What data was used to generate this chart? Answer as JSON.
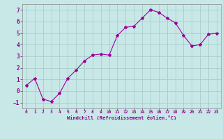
{
  "x": [
    0,
    1,
    2,
    3,
    4,
    5,
    6,
    7,
    8,
    9,
    10,
    11,
    12,
    13,
    14,
    15,
    16,
    17,
    18,
    19,
    20,
    21,
    22,
    23
  ],
  "y": [
    0.5,
    1.1,
    -0.7,
    -0.9,
    -0.2,
    1.1,
    1.8,
    2.6,
    3.1,
    3.2,
    3.1,
    4.8,
    5.5,
    5.6,
    6.3,
    7.0,
    6.8,
    6.3,
    5.9,
    4.8,
    3.9,
    4.0,
    4.9,
    5.0
  ],
  "line_color": "#990099",
  "marker": "*",
  "marker_size": 3,
  "bg_color": "#c8e8e8",
  "grid_color": "#aacccc",
  "xlabel": "Windchill (Refroidissement éolien,°C)",
  "xlabel_color": "#880088",
  "tick_color": "#880088",
  "ylim": [
    -1.5,
    7.5
  ],
  "xlim": [
    -0.5,
    23.5
  ],
  "yticks": [
    -1,
    0,
    1,
    2,
    3,
    4,
    5,
    6,
    7
  ],
  "xticks": [
    0,
    1,
    2,
    3,
    4,
    5,
    6,
    7,
    8,
    9,
    10,
    11,
    12,
    13,
    14,
    15,
    16,
    17,
    18,
    19,
    20,
    21,
    22,
    23
  ]
}
